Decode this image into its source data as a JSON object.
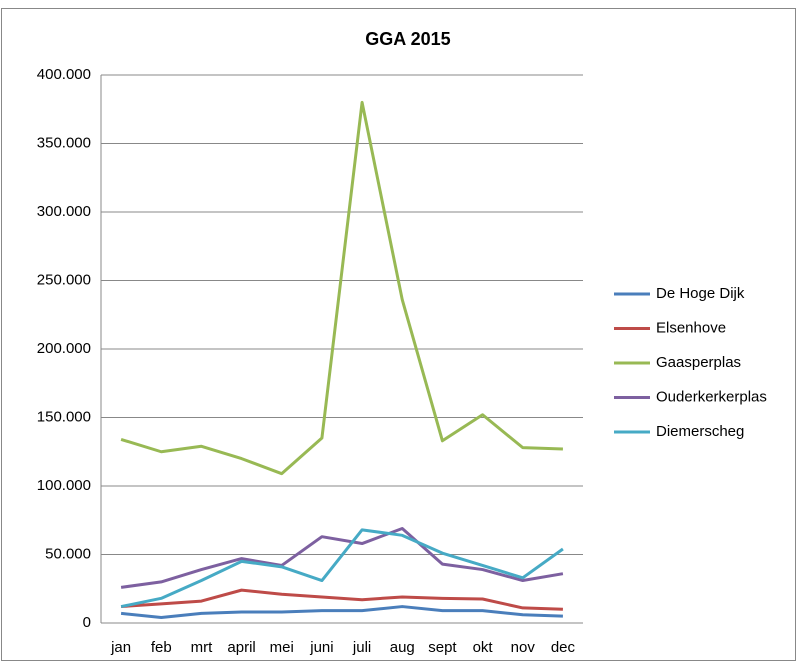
{
  "chart_data": {
    "type": "line",
    "title": "GGA 2015",
    "categories": [
      "jan",
      "feb",
      "mrt",
      "april",
      "mei",
      "juni",
      "juli",
      "aug",
      "sept",
      "okt",
      "nov",
      "dec"
    ],
    "series": [
      {
        "name": "De Hoge Dijk",
        "color": "#4a7ebb",
        "values": [
          7000,
          4000,
          7000,
          8000,
          8000,
          9000,
          9000,
          12000,
          9000,
          9000,
          6000,
          5000
        ]
      },
      {
        "name": "Elsenhove",
        "color": "#be4b48",
        "values": [
          12000,
          14000,
          16000,
          24000,
          21000,
          19000,
          17000,
          19000,
          18000,
          17500,
          11000,
          10000
        ]
      },
      {
        "name": "Gaasperplas",
        "color": "#98b954",
        "values": [
          134000,
          125000,
          129000,
          120000,
          109000,
          135000,
          380000,
          236000,
          133000,
          152000,
          128000,
          127000
        ]
      },
      {
        "name": "Ouderkerkerplas",
        "color": "#7d60a0",
        "values": [
          26000,
          30000,
          39000,
          47000,
          42000,
          63000,
          58000,
          69000,
          43000,
          39000,
          31000,
          36000
        ]
      },
      {
        "name": "Diemerscheg",
        "color": "#46aac5",
        "values": [
          12000,
          18000,
          31000,
          45000,
          41000,
          31000,
          68000,
          64000,
          51000,
          42000,
          33000,
          54000
        ]
      }
    ],
    "ylim": [
      0,
      400000
    ],
    "yticks": [
      {
        "value": 0,
        "label": "0"
      },
      {
        "value": 50000,
        "label": "50.000"
      },
      {
        "value": 100000,
        "label": "100.000"
      },
      {
        "value": 150000,
        "label": "150.000"
      },
      {
        "value": 200000,
        "label": "200.000"
      },
      {
        "value": 250000,
        "label": "250.000"
      },
      {
        "value": 300000,
        "label": "300.000"
      },
      {
        "value": 350000,
        "label": "350.000"
      },
      {
        "value": 400000,
        "label": "400.000"
      }
    ],
    "grid": true,
    "legend": "right"
  }
}
